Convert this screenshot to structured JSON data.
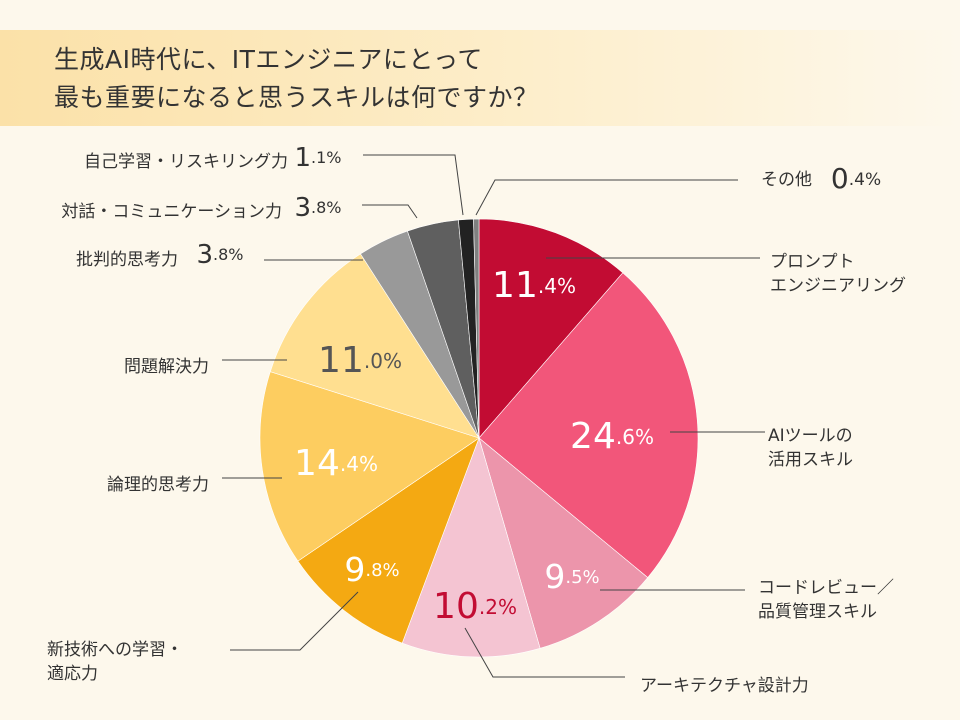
{
  "title": {
    "line1": "生成AI時代に、ITエンジニアにとって",
    "line2": "最も重要になると思うスキルは何ですか？"
  },
  "chart_data": {
    "type": "pie",
    "unit": "%",
    "slices": [
      {
        "label": "プロンプトエンジニアリング",
        "label_lines": [
          "プロンプト",
          "エンジニアリング"
        ],
        "value": 11.4,
        "color": "#c20c33"
      },
      {
        "label": "AIツールの活用スキル",
        "label_lines": [
          "AIツールの",
          "活用スキル"
        ],
        "value": 24.6,
        "color": "#f2567a"
      },
      {
        "label": "コードレビュー／品質管理スキル",
        "label_lines": [
          "コードレビュー／",
          "品質管理スキル"
        ],
        "value": 9.5,
        "color": "#ec95ab"
      },
      {
        "label": "アーキテクチャ設計力",
        "label_lines": [
          "アーキテクチャ設計力"
        ],
        "value": 10.2,
        "color": "#f4c4d2"
      },
      {
        "label": "新技術への学習・適応力",
        "label_lines": [
          "新技術への学習・",
          "適応力"
        ],
        "value": 9.8,
        "color": "#f4a912"
      },
      {
        "label": "論理的思考力",
        "label_lines": [
          "論理的思考力"
        ],
        "value": 14.4,
        "color": "#fdcd60"
      },
      {
        "label": "問題解決力",
        "label_lines": [
          "問題解決力"
        ],
        "value": 11.0,
        "color": "#ffdf90"
      },
      {
        "label": "批判的思考力",
        "label_lines": [
          "批判的思考力"
        ],
        "value": 3.8,
        "color": "#999999"
      },
      {
        "label": "対話・コミュニケーション力",
        "label_lines": [
          "対話・コミュニケーション力"
        ],
        "value": 3.8,
        "color": "#5f5f5f"
      },
      {
        "label": "自己学習・リスキリング力",
        "label_lines": [
          "自己学習・リスキリング力"
        ],
        "value": 1.1,
        "color": "#222222"
      },
      {
        "label": "その他",
        "label_lines": [
          "その他"
        ],
        "value": 0.4,
        "color": "#808080"
      }
    ]
  }
}
